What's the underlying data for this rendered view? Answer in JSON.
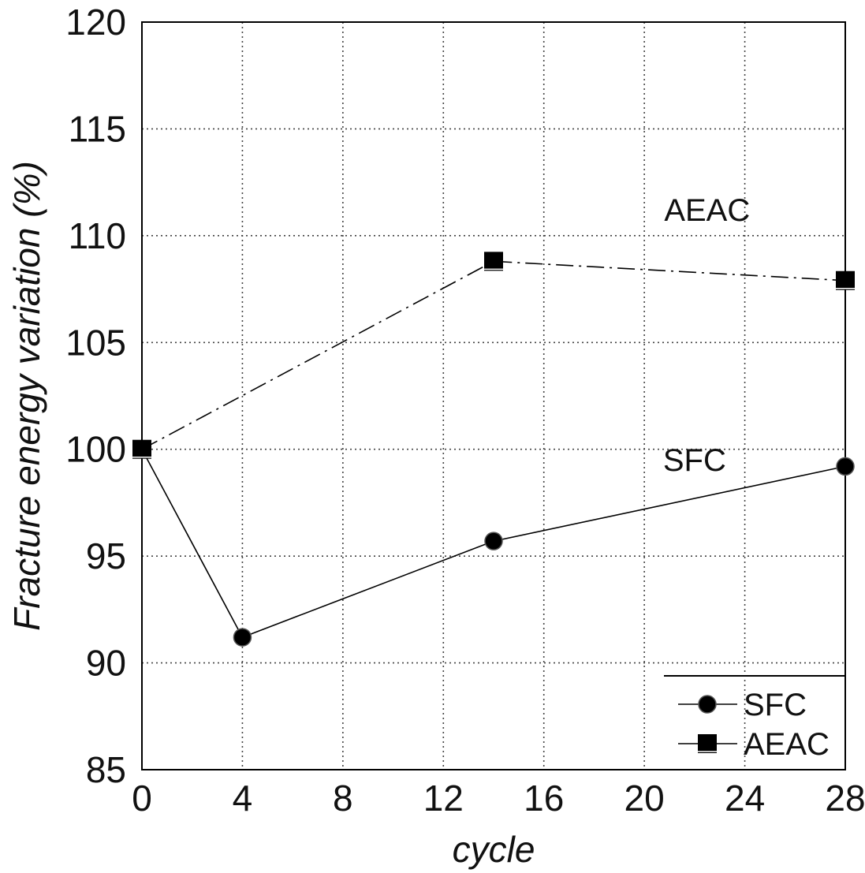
{
  "chart_data": {
    "type": "line",
    "title": "",
    "xlabel": "cycle",
    "ylabel": "Fracture energy variation (%)",
    "xlim": [
      0,
      28
    ],
    "ylim": [
      85,
      120
    ],
    "x_ticks": [
      "0",
      "4",
      "8",
      "12",
      "16",
      "20",
      "24",
      "28"
    ],
    "y_ticks": [
      "85",
      "90",
      "95",
      "100",
      "105",
      "110",
      "115",
      "120"
    ],
    "x_tick_values": [
      0,
      4,
      8,
      12,
      16,
      20,
      24,
      28
    ],
    "y_tick_values": [
      85,
      90,
      95,
      100,
      105,
      110,
      115,
      120
    ],
    "grid": true,
    "legend_position": "bottom-right",
    "series": [
      {
        "name": "SFC",
        "marker": "circle",
        "line_style": "solid",
        "color": "#000000",
        "x": [
          0,
          4,
          14,
          28
        ],
        "y": [
          100,
          91.2,
          95.7,
          99.2
        ]
      },
      {
        "name": "AEAC",
        "marker": "square",
        "line_style": "dash-dot",
        "color": "#000000",
        "x": [
          0,
          14,
          28
        ],
        "y": [
          100,
          108.8,
          107.9
        ]
      }
    ],
    "annotations": [
      {
        "text": "AEAC",
        "x": 22.5,
        "y": 110.7
      },
      {
        "text": "SFC",
        "x": 22.0,
        "y": 99.0
      }
    ]
  }
}
